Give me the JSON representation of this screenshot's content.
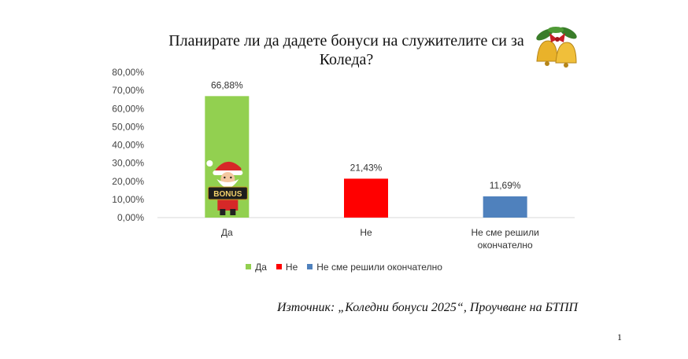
{
  "title": "Планирате ли да дадете бонуси на служителите си за Коледа?",
  "source_note": "Източник: „Коледни бонуси 2025“, Проучване на БТПП",
  "page_mark": "1",
  "icons": {
    "bells": "christmas-bells-icon",
    "santa": "santa-bonus-icon",
    "santa_sign": "BONUS"
  },
  "chart_data": {
    "type": "bar",
    "title": "Планирате ли да дадете бонуси на служителите си за Коледа?",
    "categories": [
      "Да",
      "Не",
      "Не сме решили окончателно"
    ],
    "category_lines": [
      [
        "Да"
      ],
      [
        "Не"
      ],
      [
        "Не сме решили",
        "окончателно"
      ]
    ],
    "values": [
      66.88,
      21.43,
      11.69
    ],
    "value_labels": [
      "66,88%",
      "21,43%",
      "11,69%"
    ],
    "colors": [
      "#92d050",
      "#ff0000",
      "#4f81bd"
    ],
    "ylim": [
      0,
      80
    ],
    "yticks": [
      "0,00%",
      "10,00%",
      "20,00%",
      "30,00%",
      "40,00%",
      "50,00%",
      "60,00%",
      "70,00%",
      "80,00%"
    ],
    "grid": false,
    "legend": {
      "position": "bottom",
      "entries": [
        "Да",
        "Не",
        "Не сме решили окончателно"
      ]
    },
    "xlabel": "",
    "ylabel": ""
  }
}
